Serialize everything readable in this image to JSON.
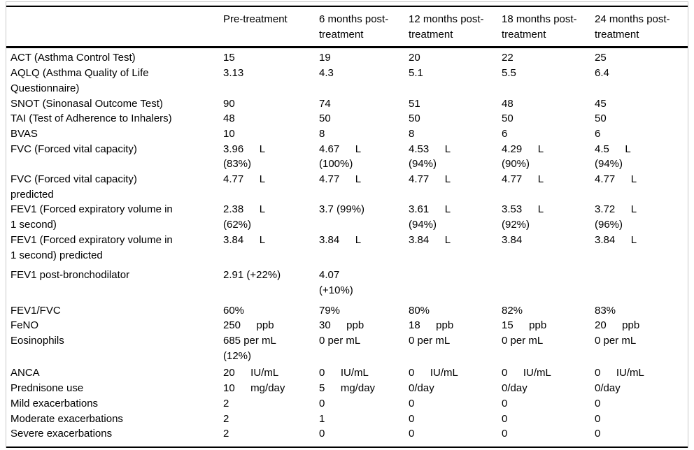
{
  "colors": {
    "rule": "#000000",
    "outer_border": "#c9c9c9",
    "background": "#ffffff",
    "text": "#000000"
  },
  "table": {
    "columns": [
      "",
      "Pre-treatment",
      "6 months post-\ntreatment",
      "12 months post-\ntreatment",
      "18 months post-\ntreatment",
      "24 months post-\ntreatment"
    ],
    "rows": [
      {
        "label": "ACT (Asthma Control Test)",
        "cells": [
          [
            "15"
          ],
          [
            "19"
          ],
          [
            "20"
          ],
          [
            "22"
          ],
          [
            "25"
          ]
        ]
      },
      {
        "label": "AQLQ (Asthma Quality of Life\nQuestionnaire)",
        "cells": [
          [
            "3.13"
          ],
          [
            "4.3"
          ],
          [
            "5.1"
          ],
          [
            "5.5"
          ],
          [
            "6.4"
          ]
        ]
      },
      {
        "label": "SNOT (Sinonasal Outcome Test)",
        "cells": [
          [
            "90"
          ],
          [
            "74"
          ],
          [
            "51"
          ],
          [
            "48"
          ],
          [
            "45"
          ]
        ]
      },
      {
        "label": "TAI (Test of Adherence to Inhalers)",
        "cells": [
          [
            "48"
          ],
          [
            "50"
          ],
          [
            "50"
          ],
          [
            "50"
          ],
          [
            "50"
          ]
        ]
      },
      {
        "label": "BVAS",
        "cells": [
          [
            "10"
          ],
          [
            "8"
          ],
          [
            "8"
          ],
          [
            "6"
          ],
          [
            "6"
          ]
        ]
      },
      {
        "label": "FVC (Forced vital capacity)",
        "cells": [
          [
            "3.96  L",
            "(83%)"
          ],
          [
            "4.67  L",
            "(100%)"
          ],
          [
            "4.53  L",
            "(94%)"
          ],
          [
            "4.29  L",
            "(90%)"
          ],
          [
            "4.5  L",
            "(94%)"
          ]
        ]
      },
      {
        "label": "FVC (Forced vital capacity)\npredicted",
        "cells": [
          [
            "4.77  L"
          ],
          [
            "4.77  L"
          ],
          [
            "4.77  L"
          ],
          [
            "4.77  L"
          ],
          [
            "4.77  L"
          ]
        ]
      },
      {
        "label": "FEV1 (Forced expiratory volume in\n1 second)",
        "cells": [
          [
            "2.38  L",
            "(62%)"
          ],
          [
            "3.7 (99%)"
          ],
          [
            "3.61  L",
            "(94%)"
          ],
          [
            "3.53  L",
            "(92%)"
          ],
          [
            "3.72  L",
            "(96%)"
          ]
        ]
      },
      {
        "label": "FEV1 (Forced expiratory volume in\n1 second) predicted",
        "cells": [
          [
            "3.84  L"
          ],
          [
            "3.84  L"
          ],
          [
            "3.84  L"
          ],
          [
            "3.84"
          ],
          [
            "3.84  L"
          ]
        ]
      },
      {
        "label": "FEV1 post-bronchodilator",
        "cells": [
          [
            "2.91 (+22%)"
          ],
          [
            "4.07",
            "(+10%)"
          ],
          [],
          [],
          []
        ]
      },
      {
        "label": "FEV1/FVC",
        "cells": [
          [
            "60%"
          ],
          [
            "79%"
          ],
          [
            "80%"
          ],
          [
            "82%"
          ],
          [
            "83%"
          ]
        ]
      },
      {
        "label": "FeNO",
        "cells": [
          [
            "250  ppb"
          ],
          [
            "30  ppb"
          ],
          [
            "18  ppb"
          ],
          [
            "15  ppb"
          ],
          [
            "20  ppb"
          ]
        ]
      },
      {
        "label": "Eosinophils",
        "cells": [
          [
            "685 per mL",
            "(12%)"
          ],
          [
            "0 per mL"
          ],
          [
            "0 per mL"
          ],
          [
            "0 per mL"
          ],
          [
            "0 per mL"
          ]
        ]
      },
      {
        "label": "ANCA",
        "cells": [
          [
            "20  IU/mL"
          ],
          [
            "0  IU/mL"
          ],
          [
            "0  IU/mL"
          ],
          [
            "0  IU/mL"
          ],
          [
            "0  IU/mL"
          ]
        ]
      },
      {
        "label": "Prednisone use",
        "cells": [
          [
            "10  mg/day"
          ],
          [
            "5  mg/day"
          ],
          [
            "0/day"
          ],
          [
            "0/day"
          ],
          [
            "0/day"
          ]
        ]
      },
      {
        "label": "Mild exacerbations",
        "cells": [
          [
            "2"
          ],
          [
            "0"
          ],
          [
            "0"
          ],
          [
            "0"
          ],
          [
            "0"
          ]
        ]
      },
      {
        "label": "Moderate exacerbations",
        "cells": [
          [
            "2"
          ],
          [
            "1"
          ],
          [
            "0"
          ],
          [
            "0"
          ],
          [
            "0"
          ]
        ]
      },
      {
        "label": "Severe exacerbations",
        "cells": [
          [
            "2"
          ],
          [
            "0"
          ],
          [
            "0"
          ],
          [
            "0"
          ],
          [
            "0"
          ]
        ]
      }
    ]
  }
}
